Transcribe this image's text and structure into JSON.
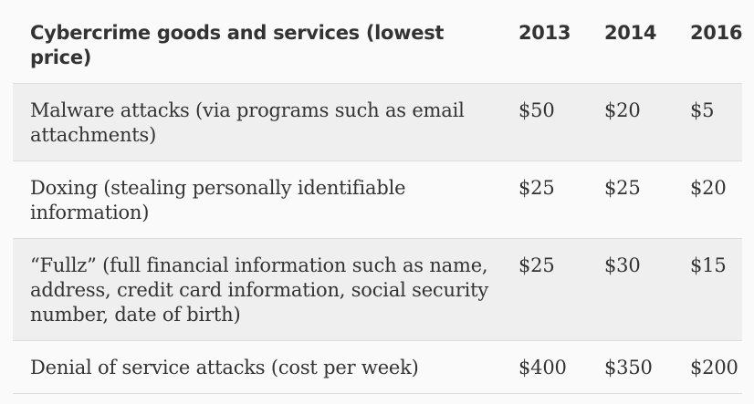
{
  "table": {
    "headers": [
      "Cybercrime goods and services (lowest price)",
      "2013",
      "2014",
      "2016"
    ],
    "rows": [
      {
        "item": "Malware attacks (via programs such as email attachments)",
        "y2013": "$50",
        "y2014": "$20",
        "y2016": "$5"
      },
      {
        "item": "Doxing (stealing personally identifiable information)",
        "y2013": "$25",
        "y2014": "$25",
        "y2016": "$20"
      },
      {
        "item": "“Fullz” (full financial information such as name, address, credit card information, social security number, date of birth)",
        "y2013": "$25",
        "y2014": "$30",
        "y2016": "$15"
      },
      {
        "item": "Denial of service attacks (cost per week)",
        "y2013": "$400",
        "y2014": "$350",
        "y2016": "$200"
      }
    ]
  },
  "colors": {
    "background": "#fafafa",
    "shaded_row": "#efefef",
    "text": "#333333",
    "rule": "#dddddd"
  }
}
